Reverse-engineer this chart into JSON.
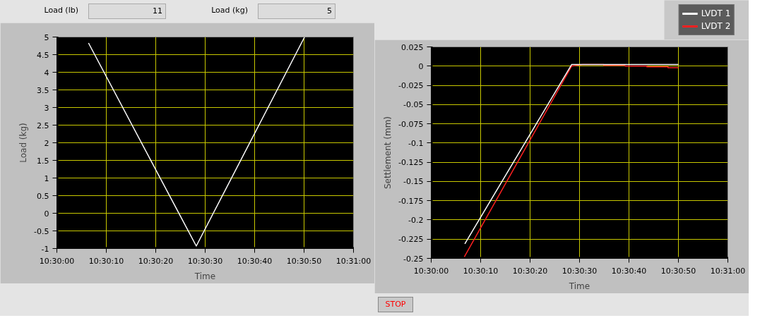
{
  "chart_data": [
    {
      "type": "line",
      "xlabel": "Time",
      "ylabel": "Load (kg)",
      "annotations": [
        "Load (lb)",
        "11",
        "Load (kg)",
        "5"
      ],
      "series": [
        {
          "color": "#ffffff",
          "x": [
            10.501778,
            10.507833,
            10.513917
          ],
          "values": [
            4.83,
            -0.93,
            5.0
          ]
        }
      ],
      "xlim": [
        10.5,
        10.516667
      ],
      "xticks": [
        {
          "value": 10.5,
          "label": "10:30:00"
        },
        {
          "value": 10.502778,
          "label": "10:30:10"
        },
        {
          "value": 10.505556,
          "label": "10:30:20"
        },
        {
          "value": 10.508333,
          "label": "10:30:30"
        },
        {
          "value": 10.511111,
          "label": "10:30:40"
        },
        {
          "value": 10.513889,
          "label": "10:30:50"
        },
        {
          "value": 10.516667,
          "label": "10:31:00"
        }
      ],
      "ylim": [
        -1,
        5
      ],
      "yticks": [
        -1,
        -0.5,
        0,
        0.5,
        1,
        1.5,
        2,
        2.5,
        3,
        3.5,
        4,
        4.5,
        5
      ],
      "grid": true
    },
    {
      "type": "line",
      "xlabel": "Time",
      "ylabel": "Settlement (mm)",
      "annotations": [
        "STOP"
      ],
      "series": [
        {
          "name": "LVDT 1",
          "color": "#ffffff",
          "x": [
            10.501889,
            10.507889,
            10.513889
          ],
          "values": [
            -0.231,
            0.002,
            0.002
          ]
        },
        {
          "name": "LVDT 2",
          "color": "#ff2020",
          "x": [
            10.501861,
            10.507889,
            10.5085,
            10.509694,
            10.509694,
            10.510889,
            10.510889,
            10.512111,
            10.512111,
            10.513306,
            10.513306,
            10.513889
          ],
          "values": [
            -0.248,
            0.0,
            0.002,
            0.002,
            0.001,
            0.001,
            0.0,
            0.0,
            -0.001,
            -0.001,
            -0.002,
            -0.002
          ]
        }
      ],
      "xlim": [
        10.5,
        10.516667
      ],
      "xticks": [
        {
          "value": 10.5,
          "label": "10:30:00"
        },
        {
          "value": 10.502778,
          "label": "10:30:10"
        },
        {
          "value": 10.505556,
          "label": "10:30:20"
        },
        {
          "value": 10.508333,
          "label": "10:30:30"
        },
        {
          "value": 10.511111,
          "label": "10:30:40"
        },
        {
          "value": 10.513889,
          "label": "10:30:50"
        },
        {
          "value": 10.516667,
          "label": "10:31:00"
        }
      ],
      "ylim": [
        -0.25,
        0.025
      ],
      "yticks": [
        -0.25,
        -0.225,
        -0.2,
        -0.175,
        -0.15,
        -0.125,
        -0.1,
        -0.075,
        -0.05,
        -0.025,
        0,
        0.025
      ],
      "grid": true,
      "legend": "top right"
    }
  ]
}
